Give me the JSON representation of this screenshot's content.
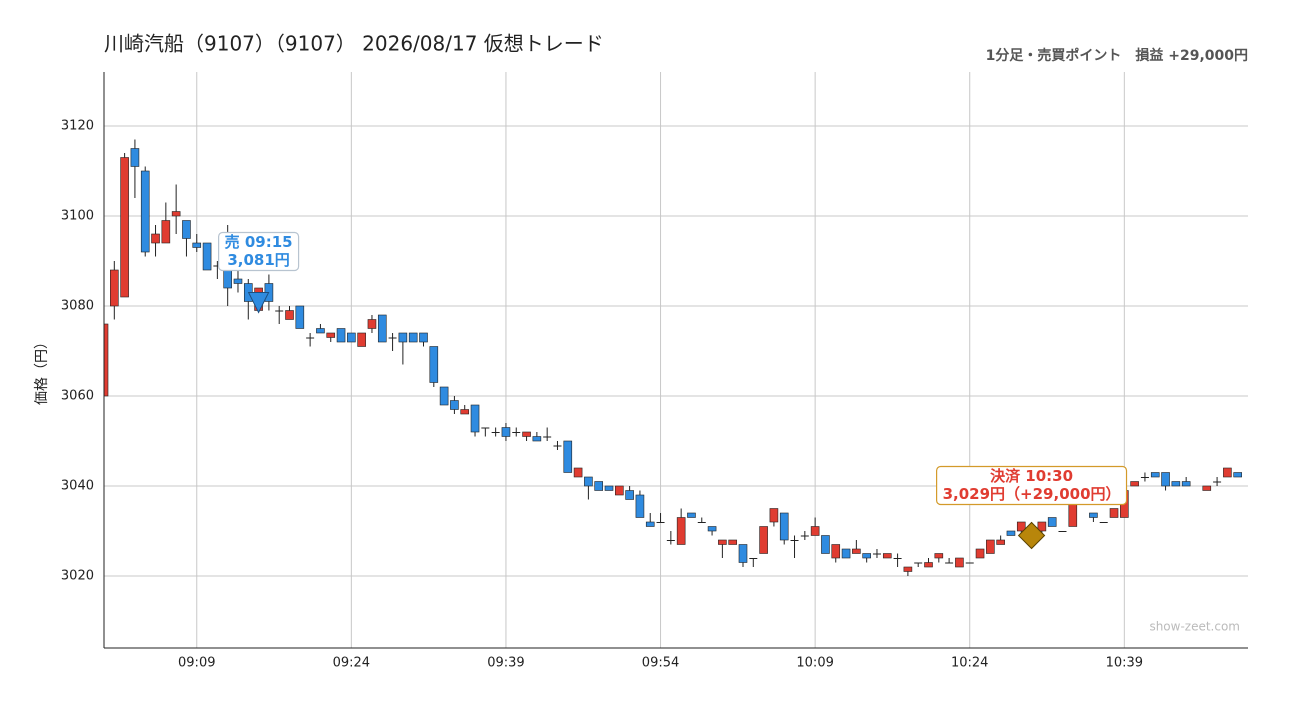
{
  "chart_data": {
    "type": "candlestick",
    "title": "川崎汽船（9107）（9107） 2026/08/17 仮想トレード",
    "subtitle": "1分足・売買ポイント　損益 +29,000円",
    "y_label": "価格（円）",
    "watermark": "show-zeet.com",
    "up_color": "#e03c31",
    "down_color": "#2f8be0",
    "grid": true,
    "xlim": [
      "09:00",
      "10:51"
    ],
    "xticks": [
      "09:09",
      "09:24",
      "09:39",
      "09:54",
      "10:09",
      "10:24",
      "10:39"
    ],
    "ylim": [
      3004,
      3132
    ],
    "yticks": [
      3020,
      3040,
      3060,
      3080,
      3100,
      3120
    ],
    "x": [
      "09:00",
      "09:01",
      "09:02",
      "09:03",
      "09:04",
      "09:05",
      "09:06",
      "09:07",
      "09:08",
      "09:09",
      "09:10",
      "09:11",
      "09:12",
      "09:13",
      "09:14",
      "09:15",
      "09:16",
      "09:17",
      "09:18",
      "09:19",
      "09:20",
      "09:21",
      "09:22",
      "09:23",
      "09:24",
      "09:25",
      "09:26",
      "09:27",
      "09:28",
      "09:29",
      "09:30",
      "09:31",
      "09:32",
      "09:33",
      "09:34",
      "09:35",
      "09:36",
      "09:37",
      "09:38",
      "09:39",
      "09:40",
      "09:41",
      "09:42",
      "09:43",
      "09:44",
      "09:45",
      "09:46",
      "09:47",
      "09:48",
      "09:49",
      "09:50",
      "09:51",
      "09:52",
      "09:53",
      "09:54",
      "09:55",
      "09:56",
      "09:57",
      "09:58",
      "09:59",
      "10:00",
      "10:01",
      "10:02",
      "10:03",
      "10:04",
      "10:05",
      "10:06",
      "10:07",
      "10:08",
      "10:09",
      "10:10",
      "10:11",
      "10:12",
      "10:13",
      "10:14",
      "10:15",
      "10:16",
      "10:17",
      "10:18",
      "10:19",
      "10:20",
      "10:21",
      "10:22",
      "10:23",
      "10:24",
      "10:25",
      "10:26",
      "10:27",
      "10:28",
      "10:29",
      "10:30",
      "10:31",
      "10:32",
      "10:33",
      "10:34",
      "10:35",
      "10:36",
      "10:37",
      "10:38",
      "10:39",
      "10:40",
      "10:41",
      "10:42",
      "10:43",
      "10:44",
      "10:45",
      "10:46",
      "10:47",
      "10:48",
      "10:49",
      "10:50"
    ],
    "open": [
      3060,
      3080,
      3082,
      3115,
      3110,
      3094,
      3094,
      3100,
      3099,
      3094,
      3094,
      3089,
      3088,
      3086,
      3085,
      3079,
      3085,
      3079,
      3077,
      3080,
      3073,
      3075,
      3073,
      3075,
      3074,
      3071,
      3075,
      3078,
      3073,
      3074,
      3074,
      3074,
      3071,
      3062,
      3059,
      3056,
      3058,
      3053,
      3052,
      3053,
      3052,
      3051,
      3051,
      3051,
      3049,
      3050,
      3042,
      3042,
      3041,
      3040,
      3038,
      3039,
      3038,
      3032,
      3032,
      3028,
      3027,
      3034,
      3032,
      3031,
      3027,
      3027,
      3027,
      3024,
      3025,
      3032,
      3034,
      3028,
      3029,
      3029,
      3029,
      3024,
      3026,
      3025,
      3025,
      3025,
      3024,
      3024,
      3021,
      3023,
      3022,
      3024,
      3023,
      3022,
      3023,
      3024,
      3025,
      3027,
      3030,
      3030,
      3030,
      3030,
      3033,
      3030,
      3031,
      3037,
      3034,
      3032,
      3033,
      3033,
      3040,
      3042,
      3043,
      3043,
      3041,
      3041,
      null,
      3039,
      3041,
      3042,
      3043
    ],
    "high": [
      3076,
      3090,
      3114,
      3117,
      3111,
      3098,
      3103,
      3107,
      3099,
      3096,
      3094,
      3090,
      3098,
      3088,
      3086,
      3084,
      3087,
      3080,
      3080,
      3080,
      3074,
      3076,
      3074,
      3075,
      3074,
      3074,
      3078,
      3078,
      3074,
      3074,
      3074,
      3074,
      3071,
      3062,
      3060,
      3058,
      3058,
      3053,
      3053,
      3054,
      3053,
      3052,
      3052,
      3053,
      3050,
      3050,
      3044,
      3042,
      3041,
      3040,
      3040,
      3040,
      3039,
      3034,
      3034,
      3030,
      3035,
      3034,
      3033,
      3031,
      3028,
      3028,
      3027,
      3024,
      3031,
      3035,
      3034,
      3029,
      3030,
      3033,
      3029,
      3027,
      3026,
      3028,
      3025,
      3026,
      3025,
      3025,
      3022,
      3023,
      3024,
      3025,
      3024,
      3024,
      3023,
      3026,
      3028,
      3029,
      3030,
      3032,
      3032,
      3032,
      3033,
      3030,
      3038,
      3038,
      3034,
      3032,
      3035,
      3039,
      3041,
      3043,
      3043,
      3043,
      3041,
      3042,
      null,
      3040,
      3042,
      3044,
      3043
    ],
    "low": [
      3060,
      3077,
      3082,
      3104,
      3091,
      3091,
      3094,
      3096,
      3091,
      3092,
      3088,
      3086,
      3080,
      3083,
      3077,
      3079,
      3079,
      3076,
      3077,
      3075,
      3071,
      3074,
      3072,
      3072,
      3072,
      3071,
      3074,
      3072,
      3070,
      3067,
      3072,
      3071,
      3062,
      3058,
      3056,
      3056,
      3051,
      3051,
      3051,
      3050,
      3051,
      3050,
      3050,
      3050,
      3048,
      3043,
      3042,
      3037,
      3039,
      3039,
      3038,
      3037,
      3033,
      3031,
      3032,
      3027,
      3027,
      3033,
      3032,
      3029,
      3024,
      3027,
      3022,
      3022,
      3025,
      3031,
      3027,
      3024,
      3028,
      3029,
      3025,
      3023,
      3024,
      3025,
      3023,
      3024,
      3024,
      3022,
      3020,
      3022,
      3022,
      3023,
      3023,
      3022,
      3023,
      3024,
      3025,
      3027,
      3029,
      3029,
      3029,
      3029,
      3031,
      3030,
      3031,
      3036,
      3032,
      3032,
      3033,
      3033,
      3040,
      3041,
      3042,
      3039,
      3040,
      3040,
      null,
      3039,
      3040,
      3042,
      3042
    ],
    "close": [
      3076,
      3088,
      3113,
      3111,
      3092,
      3096,
      3099,
      3101,
      3095,
      3093,
      3088,
      3089,
      3084,
      3085,
      3081,
      3084,
      3081,
      3079,
      3079,
      3075,
      3073,
      3074,
      3074,
      3072,
      3072,
      3074,
      3077,
      3072,
      3073,
      3072,
      3072,
      3072,
      3063,
      3058,
      3057,
      3057,
      3052,
      3053,
      3052,
      3051,
      3052,
      3052,
      3050,
      3051,
      3049,
      3043,
      3044,
      3040,
      3039,
      3039,
      3040,
      3037,
      3033,
      3031,
      3032,
      3028,
      3033,
      3033,
      3032,
      3030,
      3028,
      3028,
      3023,
      3024,
      3031,
      3035,
      3028,
      3028,
      3029,
      3031,
      3025,
      3027,
      3024,
      3026,
      3024,
      3025,
      3025,
      3024,
      3022,
      3023,
      3023,
      3025,
      3023,
      3024,
      3023,
      3026,
      3028,
      3028,
      3029,
      3032,
      3031,
      3032,
      3031,
      3030,
      3037,
      3037,
      3033,
      3032,
      3035,
      3039,
      3041,
      3042,
      3042,
      3040,
      3040,
      3040,
      null,
      3040,
      3041,
      3044,
      3042
    ],
    "annotations": [
      {
        "kind": "sell",
        "time": "09:15",
        "price": 3081,
        "color": "#2f8be0",
        "border": "#b8c4d0",
        "lines": [
          "売 09:15",
          "3,081円"
        ]
      },
      {
        "kind": "settle",
        "time": "10:30",
        "price": 3029,
        "color": "#e03c31",
        "border": "#d39a2a",
        "marker_color": "#b8860b",
        "lines": [
          "決済 10:30",
          "3,029円（+29,000円）"
        ]
      }
    ]
  }
}
